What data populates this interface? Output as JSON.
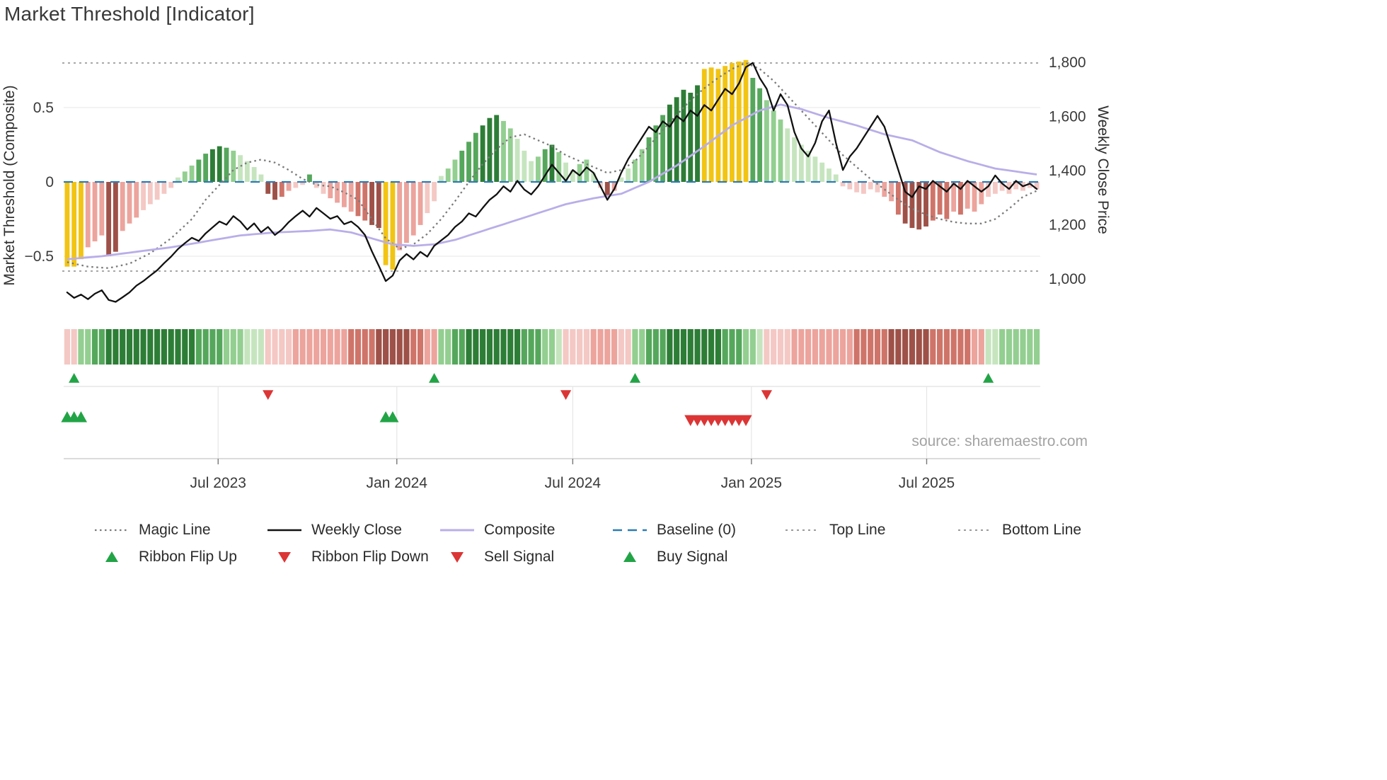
{
  "title": "Market Threshold [Indicator]",
  "source_note": "source: sharemaestro.com",
  "axes": {
    "left_title": "Market Threshold (Composite)",
    "right_title": "Weekly Close Price",
    "left_ticks": [
      {
        "v": 0.5,
        "label": "0.5"
      },
      {
        "v": 0,
        "label": "0"
      },
      {
        "v": -0.5,
        "label": "−0.5"
      }
    ],
    "right_ticks": [
      {
        "v": 1800,
        "label": "1,800"
      },
      {
        "v": 1600,
        "label": "1,600"
      },
      {
        "v": 1400,
        "label": "1,400"
      },
      {
        "v": 1200,
        "label": "1,200"
      },
      {
        "v": 1000,
        "label": "1,000"
      }
    ],
    "x_ticks": [
      {
        "pos": 21.8,
        "label": "Jul 2023"
      },
      {
        "pos": 47.6,
        "label": "Jan 2024"
      },
      {
        "pos": 73.0,
        "label": "Jul 2024"
      },
      {
        "pos": 98.8,
        "label": "Jan 2025"
      },
      {
        "pos": 124.1,
        "label": "Jul 2025"
      }
    ]
  },
  "colors": {
    "palette": {
      "y": "#f2c413",
      "g1": "#c6e5bf",
      "g2": "#93cf90",
      "g3": "#55a75c",
      "g4": "#2d7d36",
      "r1": "#f4c8c4",
      "r2": "#eca49d",
      "r3": "#cf7469",
      "r4": "#9e5148"
    },
    "series": {
      "magic_line": "#7a7a7a",
      "weekly_close": "#111111",
      "composite": "#b9aee8",
      "baseline": "#2b7cb5",
      "top_bottom": "#8c8c8c",
      "up_marker": "#22a446",
      "down_marker": "#dc3535"
    }
  },
  "legend": {
    "magic": {
      "label": "Magic Line"
    },
    "weekly_close": {
      "label": "Weekly Close"
    },
    "composite": {
      "label": "Composite"
    },
    "baseline": {
      "label": "Baseline (0)"
    },
    "top": {
      "label": "Top Line"
    },
    "bottom": {
      "label": "Bottom Line"
    },
    "flip_up": {
      "label": "Ribbon Flip Up"
    },
    "flip_down": {
      "label": "Ribbon Flip Down"
    },
    "sell": {
      "label": "Sell Signal"
    },
    "buy": {
      "label": "Buy Signal"
    }
  },
  "chart_data": {
    "type": "combo_bar_line",
    "title": "Market Threshold [Indicator]",
    "x_unit": "weekly, index 0 ≈ mid-Feb 2023 through late Oct 2025",
    "left_axis": {
      "label": "Market Threshold (Composite)",
      "ylim": [
        -0.9,
        0.95
      ]
    },
    "right_axis": {
      "label": "Weekly Close Price",
      "ylim": [
        900,
        1850
      ]
    },
    "baseline": 0,
    "top_line": 0.8,
    "bottom_line": -0.6,
    "threshold_bars": {
      "values": [
        -0.57,
        -0.57,
        -0.52,
        -0.44,
        -0.4,
        -0.36,
        -0.5,
        -0.47,
        -0.33,
        -0.28,
        -0.24,
        -0.19,
        -0.15,
        -0.12,
        -0.08,
        -0.04,
        0.03,
        0.07,
        0.11,
        0.15,
        0.19,
        0.22,
        0.24,
        0.23,
        0.21,
        0.18,
        0.14,
        0.1,
        0.05,
        -0.08,
        -0.12,
        -0.1,
        -0.06,
        -0.04,
        -0.02,
        0.05,
        -0.04,
        -0.08,
        -0.11,
        -0.14,
        -0.17,
        -0.2,
        -0.23,
        -0.26,
        -0.29,
        -0.31,
        -0.56,
        -0.59,
        -0.46,
        -0.41,
        -0.36,
        -0.29,
        -0.21,
        -0.13,
        0.04,
        0.09,
        0.15,
        0.21,
        0.27,
        0.33,
        0.38,
        0.43,
        0.45,
        0.41,
        0.36,
        0.29,
        0.21,
        0.14,
        0.17,
        0.22,
        0.25,
        0.2,
        0.13,
        0.08,
        0.12,
        0.15,
        0.06,
        -0.04,
        -0.09,
        -0.06,
        0.03,
        0.09,
        0.15,
        0.22,
        0.3,
        0.38,
        0.45,
        0.52,
        0.57,
        0.62,
        0.6,
        0.65,
        0.76,
        0.77,
        0.76,
        0.78,
        0.8,
        0.81,
        0.82,
        0.7,
        0.63,
        0.55,
        0.48,
        0.42,
        0.36,
        0.3,
        0.25,
        0.21,
        0.17,
        0.13,
        0.09,
        0.05,
        -0.03,
        -0.05,
        -0.07,
        -0.08,
        -0.05,
        -0.07,
        -0.1,
        -0.13,
        -0.22,
        -0.28,
        -0.31,
        -0.32,
        -0.3,
        -0.26,
        -0.22,
        -0.25,
        -0.2,
        -0.22,
        -0.18,
        -0.2,
        -0.15,
        -0.1,
        -0.08,
        -0.06,
        -0.08,
        -0.05,
        -0.06,
        -0.04,
        -0.05
      ],
      "colors": [
        "y",
        "y",
        "y",
        "r2",
        "r2",
        "r2",
        "r4",
        "r4",
        "r2",
        "r2",
        "r2",
        "r1",
        "r1",
        "r1",
        "r1",
        "r1",
        "g1",
        "g2",
        "g2",
        "g3",
        "g3",
        "g4",
        "g4",
        "g3",
        "g2",
        "g1",
        "g1",
        "g1",
        "g1",
        "r4",
        "r4",
        "r3",
        "r2",
        "r1",
        "r1",
        "g3",
        "r1",
        "r1",
        "r2",
        "r2",
        "r2",
        "r2",
        "r3",
        "r3",
        "r4",
        "r4",
        "y",
        "y",
        "r2",
        "r2",
        "r2",
        "r2",
        "r1",
        "r1",
        "g1",
        "g2",
        "g2",
        "g3",
        "g3",
        "g3",
        "g4",
        "g4",
        "g4",
        "g2",
        "g2",
        "g1",
        "g1",
        "g1",
        "g2",
        "g3",
        "g4",
        "g2",
        "g1",
        "g1",
        "g2",
        "g2",
        "g1",
        "r1",
        "r4",
        "r2",
        "g1",
        "g1",
        "g2",
        "g2",
        "g3",
        "g3",
        "g3",
        "g4",
        "g4",
        "g4",
        "g4",
        "g4",
        "y",
        "y",
        "y",
        "y",
        "y",
        "y",
        "y",
        "g3",
        "g3",
        "g2",
        "g2",
        "g2",
        "g1",
        "g1",
        "g1",
        "g1",
        "g1",
        "g1",
        "g1",
        "g1",
        "r1",
        "r1",
        "r1",
        "r1",
        "r1",
        "r1",
        "r2",
        "r2",
        "r3",
        "r4",
        "r4",
        "r4",
        "r4",
        "r3",
        "r3",
        "r3",
        "r2",
        "r3",
        "r2",
        "r2",
        "r2",
        "r1",
        "r1",
        "r1",
        "r1",
        "r1",
        "r1",
        "r1",
        "r1"
      ]
    },
    "weekly_close": [
      950,
      930,
      942,
      925,
      945,
      958,
      922,
      915,
      932,
      950,
      975,
      992,
      1012,
      1032,
      1058,
      1082,
      1110,
      1132,
      1152,
      1140,
      1168,
      1190,
      1212,
      1200,
      1232,
      1212,
      1182,
      1205,
      1172,
      1192,
      1162,
      1182,
      1210,
      1232,
      1252,
      1230,
      1262,
      1242,
      1222,
      1232,
      1202,
      1212,
      1192,
      1162,
      1102,
      1048,
      992,
      1012,
      1068,
      1092,
      1072,
      1100,
      1082,
      1122,
      1142,
      1162,
      1192,
      1212,
      1242,
      1230,
      1262,
      1292,
      1312,
      1342,
      1322,
      1362,
      1330,
      1312,
      1342,
      1382,
      1422,
      1392,
      1362,
      1402,
      1382,
      1412,
      1392,
      1342,
      1292,
      1332,
      1392,
      1442,
      1482,
      1522,
      1562,
      1542,
      1582,
      1562,
      1602,
      1582,
      1622,
      1602,
      1642,
      1622,
      1662,
      1702,
      1682,
      1722,
      1782,
      1798,
      1742,
      1702,
      1622,
      1682,
      1642,
      1542,
      1482,
      1452,
      1502,
      1582,
      1622,
      1502,
      1402,
      1452,
      1482,
      1522,
      1562,
      1602,
      1562,
      1482,
      1402,
      1322,
      1302,
      1342,
      1332,
      1362,
      1342,
      1322,
      1352,
      1332,
      1362,
      1342,
      1322,
      1342,
      1382,
      1352,
      1332,
      1362,
      1342,
      1352,
      1332
    ],
    "composite_keypoints": [
      [
        0,
        -0.52
      ],
      [
        5,
        -0.5
      ],
      [
        10,
        -0.47
      ],
      [
        15,
        -0.44
      ],
      [
        20,
        -0.4
      ],
      [
        25,
        -0.36
      ],
      [
        30,
        -0.34
      ],
      [
        35,
        -0.33
      ],
      [
        38,
        -0.32
      ],
      [
        41,
        -0.34
      ],
      [
        44,
        -0.38
      ],
      [
        47,
        -0.42
      ],
      [
        50,
        -0.43
      ],
      [
        53,
        -0.42
      ],
      [
        56,
        -0.39
      ],
      [
        60,
        -0.33
      ],
      [
        64,
        -0.27
      ],
      [
        68,
        -0.21
      ],
      [
        72,
        -0.15
      ],
      [
        76,
        -0.11
      ],
      [
        80,
        -0.08
      ],
      [
        84,
        0.0
      ],
      [
        88,
        0.11
      ],
      [
        92,
        0.24
      ],
      [
        96,
        0.38
      ],
      [
        100,
        0.48
      ],
      [
        103,
        0.52
      ],
      [
        106,
        0.49
      ],
      [
        110,
        0.43
      ],
      [
        114,
        0.38
      ],
      [
        118,
        0.32
      ],
      [
        122,
        0.28
      ],
      [
        126,
        0.2
      ],
      [
        130,
        0.14
      ],
      [
        134,
        0.09
      ],
      [
        137,
        0.07
      ],
      [
        140,
        0.05
      ]
    ],
    "magic_line_keypoints": [
      [
        0,
        -0.54
      ],
      [
        3,
        -0.57
      ],
      [
        6,
        -0.58
      ],
      [
        9,
        -0.55
      ],
      [
        12,
        -0.48
      ],
      [
        15,
        -0.38
      ],
      [
        18,
        -0.25
      ],
      [
        20,
        -0.12
      ],
      [
        22,
        -0.02
      ],
      [
        24,
        0.08
      ],
      [
        26,
        0.13
      ],
      [
        28,
        0.15
      ],
      [
        30,
        0.13
      ],
      [
        32,
        0.08
      ],
      [
        34,
        0.02
      ],
      [
        36,
        -0.02
      ],
      [
        38,
        -0.03
      ],
      [
        40,
        -0.07
      ],
      [
        42,
        -0.12
      ],
      [
        44,
        -0.25
      ],
      [
        46,
        -0.38
      ],
      [
        48,
        -0.45
      ],
      [
        50,
        -0.42
      ],
      [
        52,
        -0.35
      ],
      [
        54,
        -0.25
      ],
      [
        56,
        -0.13
      ],
      [
        58,
        0.0
      ],
      [
        60,
        0.12
      ],
      [
        62,
        0.22
      ],
      [
        64,
        0.3
      ],
      [
        66,
        0.32
      ],
      [
        68,
        0.28
      ],
      [
        70,
        0.24
      ],
      [
        72,
        0.18
      ],
      [
        74,
        0.14
      ],
      [
        76,
        0.1
      ],
      [
        78,
        0.06
      ],
      [
        80,
        0.08
      ],
      [
        82,
        0.14
      ],
      [
        84,
        0.24
      ],
      [
        86,
        0.35
      ],
      [
        88,
        0.45
      ],
      [
        90,
        0.55
      ],
      [
        92,
        0.63
      ],
      [
        94,
        0.7
      ],
      [
        96,
        0.76
      ],
      [
        98,
        0.8
      ],
      [
        100,
        0.76
      ],
      [
        102,
        0.68
      ],
      [
        104,
        0.58
      ],
      [
        106,
        0.48
      ],
      [
        108,
        0.38
      ],
      [
        110,
        0.28
      ],
      [
        112,
        0.18
      ],
      [
        114,
        0.1
      ],
      [
        116,
        0.02
      ],
      [
        118,
        -0.05
      ],
      [
        120,
        -0.12
      ],
      [
        122,
        -0.18
      ],
      [
        124,
        -0.22
      ],
      [
        126,
        -0.25
      ],
      [
        128,
        -0.27
      ],
      [
        130,
        -0.28
      ],
      [
        132,
        -0.28
      ],
      [
        134,
        -0.25
      ],
      [
        136,
        -0.18
      ],
      [
        138,
        -0.1
      ],
      [
        140,
        -0.06
      ]
    ],
    "ribbon": [
      "r1",
      "r1",
      "g2",
      "g2",
      "g3",
      "g3",
      "g4",
      "g4",
      "g4",
      "g4",
      "g4",
      "g4",
      "g4",
      "g4",
      "g4",
      "g4",
      "g4",
      "g4",
      "g4",
      "g3",
      "g3",
      "g3",
      "g3",
      "g2",
      "g2",
      "g2",
      "g1",
      "g1",
      "g1",
      "r1",
      "r1",
      "r1",
      "r1",
      "r2",
      "r2",
      "r2",
      "r2",
      "r2",
      "r2",
      "r2",
      "r2",
      "r3",
      "r3",
      "r3",
      "r3",
      "r4",
      "r4",
      "r4",
      "r4",
      "r4",
      "r3",
      "r3",
      "r2",
      "r2",
      "g2",
      "g2",
      "g3",
      "g3",
      "g4",
      "g4",
      "g4",
      "g4",
      "g4",
      "g4",
      "g4",
      "g4",
      "g3",
      "g3",
      "g3",
      "g2",
      "g2",
      "g1",
      "r1",
      "r1",
      "r1",
      "r1",
      "r2",
      "r2",
      "r2",
      "r2",
      "r1",
      "r1",
      "g2",
      "g2",
      "g3",
      "g3",
      "g3",
      "g4",
      "g4",
      "g4",
      "g4",
      "g4",
      "g4",
      "g4",
      "g4",
      "g3",
      "g3",
      "g3",
      "g2",
      "g2",
      "g1",
      "r1",
      "r1",
      "r1",
      "r1",
      "r2",
      "r2",
      "r2",
      "r2",
      "r2",
      "r2",
      "r2",
      "r2",
      "r2",
      "r3",
      "r3",
      "r3",
      "r3",
      "r3",
      "r4",
      "r4",
      "r4",
      "r4",
      "r4",
      "r4",
      "r3",
      "r3",
      "r3",
      "r3",
      "r3",
      "r3",
      "r2",
      "r2",
      "g1",
      "g1",
      "g2",
      "g2",
      "g2",
      "g2",
      "g2",
      "g2"
    ],
    "signals": {
      "ribbon_flip_up": [
        1,
        53,
        82,
        133
      ],
      "ribbon_flip_down": [
        29,
        72,
        101
      ],
      "buy": [
        0,
        1,
        2,
        46,
        47
      ],
      "sell": [
        90,
        91,
        92,
        93,
        94,
        95,
        96,
        97,
        98
      ]
    }
  }
}
